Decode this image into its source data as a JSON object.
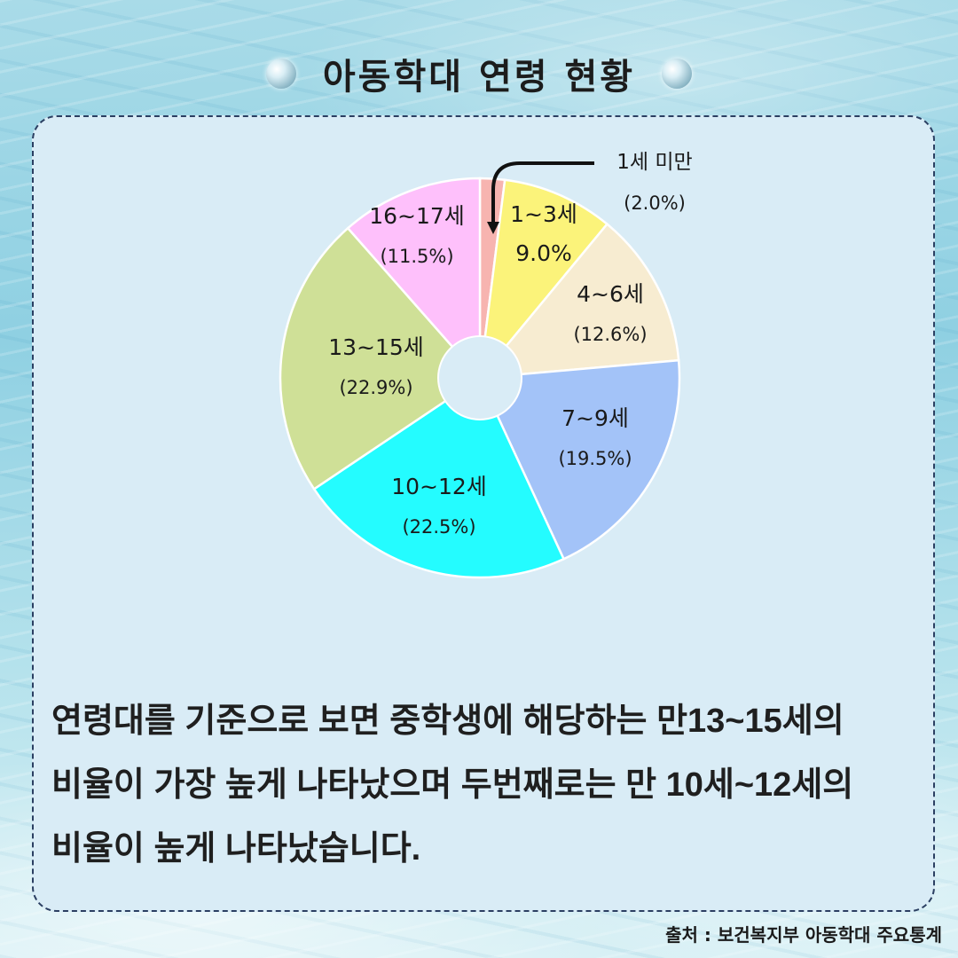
{
  "title": "아동학대 연령 현황",
  "chart_data": {
    "type": "pie",
    "title": "아동학대 연령 현황",
    "slices": [
      {
        "label": "1세 미만",
        "value": 2.0,
        "pct_text": "(2.0%)",
        "color": "#f7b4b0"
      },
      {
        "label": "1~3세",
        "value": 9.0,
        "pct_text": "9.0%",
        "color": "#fbf37a"
      },
      {
        "label": "4~6세",
        "value": 12.6,
        "pct_text": "(12.6%)",
        "color": "#f7ecd1"
      },
      {
        "label": "7~9세",
        "value": 19.5,
        "pct_text": "(19.5%)",
        "color": "#a3c3f8"
      },
      {
        "label": "10~12세",
        "value": 22.5,
        "pct_text": "(22.5%)",
        "color": "#24fcff"
      },
      {
        "label": "13~15세",
        "value": 22.9,
        "pct_text": "(22.9%)",
        "color": "#cfe097"
      },
      {
        "label": "16~17세",
        "value": 11.5,
        "pct_text": "(11.5%)",
        "color": "#fec0fb"
      }
    ],
    "donut_hole": true,
    "legend": "none"
  },
  "summary": {
    "line1": "연령대를 기준으로 보면 중학생에 해당하는 만13~15세의",
    "line2": "비율이 가장 높게 나타났으며 두번째로는 만 10세~12세의",
    "line3": "비율이 높게 나타났습니다."
  },
  "source": "출처 : 보건복지부 아동학대 주요통계"
}
